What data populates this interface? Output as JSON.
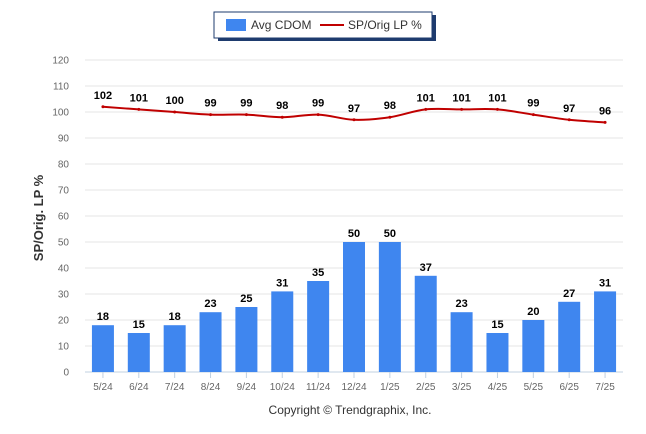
{
  "chart_data": {
    "type": "bar",
    "categories": [
      "5/24",
      "6/24",
      "7/24",
      "8/24",
      "9/24",
      "10/24",
      "11/24",
      "12/24",
      "1/25",
      "2/25",
      "3/25",
      "4/25",
      "5/25",
      "6/25",
      "7/25"
    ],
    "series": [
      {
        "name": "Avg CDOM",
        "type": "bar",
        "color": "#3f86ef",
        "values": [
          18,
          15,
          18,
          23,
          25,
          31,
          35,
          50,
          50,
          37,
          23,
          15,
          20,
          27,
          31
        ]
      },
      {
        "name": "SP/Orig LP %",
        "type": "line",
        "color": "#c00000",
        "values": [
          102,
          101,
          100,
          99,
          99,
          98,
          99,
          97,
          98,
          101,
          101,
          101,
          99,
          97,
          96
        ]
      }
    ],
    "ylabel": "SP/Orig. LP %",
    "ylim": [
      0,
      120
    ],
    "yticks": [
      0,
      10,
      20,
      30,
      40,
      50,
      60,
      70,
      80,
      90,
      100,
      110,
      120
    ],
    "grid": true,
    "legend_position": "top-center"
  },
  "footer": {
    "copyright": "Copyright © Trendgraphix, Inc."
  }
}
